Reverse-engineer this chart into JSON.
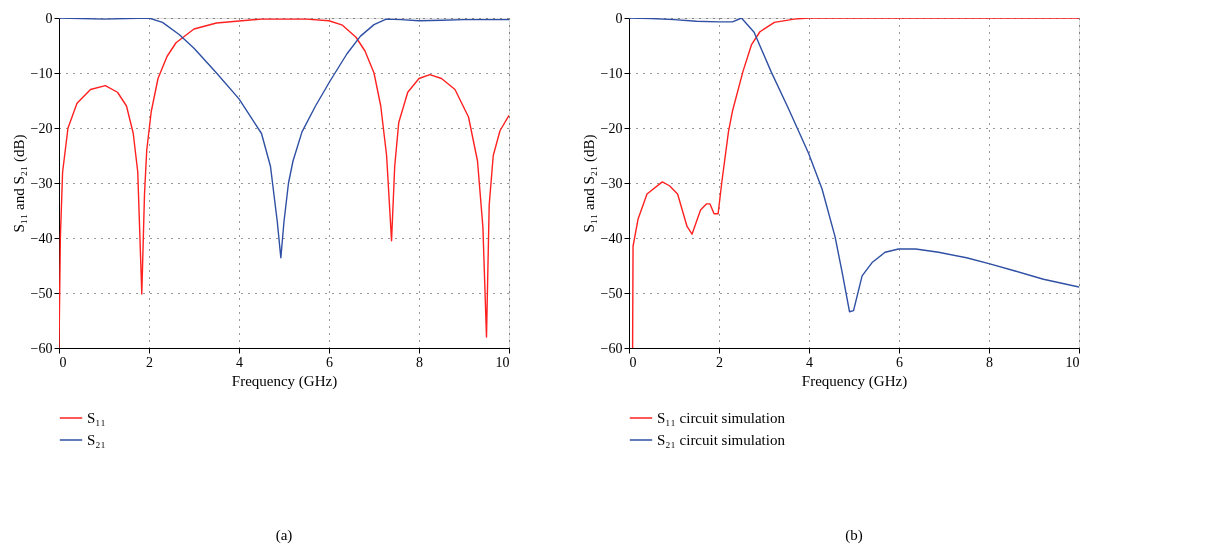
{
  "chart_data": [
    {
      "type": "line",
      "xlabel": "Frequency (GHz)",
      "ylabel": "S₁₁ and S₂₁ (dB)",
      "xlim": [
        0,
        10
      ],
      "ylim": [
        -60,
        0
      ],
      "xticks": [
        0,
        2,
        4,
        6,
        8,
        10
      ],
      "yticks": [
        -60,
        -50,
        -40,
        -30,
        -20,
        -10,
        0
      ],
      "grid": true,
      "legend": "bottom left",
      "marker": "none",
      "line_style": "solid",
      "annotations": [
        "(a)"
      ],
      "series": [
        {
          "name": "S₁₁",
          "color": "#ff2020",
          "x": [
            0,
            0.03,
            0.08,
            0.2,
            0.4,
            0.7,
            1.03,
            1.3,
            1.5,
            1.65,
            1.75,
            1.84,
            1.9,
            1.95,
            2.05,
            2.2,
            2.4,
            2.6,
            3.0,
            3.5,
            4.5,
            5.5,
            6.0,
            6.3,
            6.6,
            6.8,
            7.0,
            7.15,
            7.28,
            7.39,
            7.46,
            7.55,
            7.75,
            8.0,
            8.24,
            8.5,
            8.8,
            9.1,
            9.3,
            9.42,
            9.5,
            9.56,
            9.65,
            9.8,
            10
          ],
          "values": [
            -60,
            -40,
            -28,
            -20,
            -15.5,
            -13,
            -12.3,
            -13.5,
            -16,
            -21,
            -28,
            -50.2,
            -32,
            -24,
            -17,
            -11,
            -7,
            -4.5,
            -2,
            -0.9,
            -0.2,
            -0.2,
            -0.5,
            -1.3,
            -3.5,
            -6,
            -10,
            -16,
            -25,
            -40.5,
            -27,
            -19,
            -13.5,
            -11,
            -10.3,
            -11,
            -13,
            -18,
            -26,
            -38,
            -58,
            -34,
            -25,
            -20.5,
            -17.7
          ]
        },
        {
          "name": "S₂₁",
          "color": "#2e4fa3",
          "x": [
            0,
            0.5,
            1,
            1.5,
            2.0,
            2.3,
            2.67,
            3.0,
            3.5,
            4.0,
            4.5,
            4.7,
            4.85,
            4.93,
            5.0,
            5.1,
            5.2,
            5.4,
            5.7,
            6.02,
            6.4,
            6.7,
            7.0,
            7.27,
            7.6,
            8.0,
            8.5,
            9.0,
            9.5,
            10
          ],
          "values": [
            0,
            -0.1,
            -0.2,
            -0.1,
            0,
            -0.8,
            -3,
            -5.5,
            -10,
            -14.7,
            -21,
            -27,
            -37,
            -43.6,
            -37,
            -30,
            -26,
            -20.7,
            -16,
            -11.5,
            -6.5,
            -3.3,
            -1.2,
            -0.2,
            -0.3,
            -0.5,
            -0.4,
            -0.3,
            -0.3,
            -0.3
          ]
        }
      ]
    },
    {
      "type": "line",
      "xlabel": "Frequency (GHz)",
      "ylabel": "S₁₁ and S₂₁ (dB)",
      "xlim": [
        0,
        10
      ],
      "ylim": [
        -60,
        0
      ],
      "xticks": [
        0,
        2,
        4,
        6,
        8,
        10
      ],
      "yticks": [
        -60,
        -50,
        -40,
        -30,
        -20,
        -10,
        0
      ],
      "grid": true,
      "legend": "bottom left",
      "marker": "none",
      "line_style": "solid",
      "annotations": [
        "(b)"
      ],
      "series": [
        {
          "name": "S₁₁ circuit simulation",
          "color": "#ff2020",
          "x": [
            0.08,
            0.09,
            0.2,
            0.4,
            0.74,
            0.9,
            1.08,
            1.29,
            1.4,
            1.59,
            1.72,
            1.8,
            1.89,
            1.98,
            2.06,
            2.21,
            2.3,
            2.53,
            2.72,
            2.91,
            3.23,
            3.67,
            4.0,
            5,
            6,
            7,
            8,
            9,
            10
          ],
          "values": [
            -60,
            -41.5,
            -36.6,
            -32,
            -29.8,
            -30.5,
            -32,
            -37.9,
            -39.3,
            -34.9,
            -33.8,
            -33.8,
            -35.6,
            -35.6,
            -30,
            -20.7,
            -16.9,
            -9.8,
            -4.9,
            -2.5,
            -0.8,
            -0.2,
            0,
            0,
            0,
            0,
            0,
            0,
            0
          ]
        },
        {
          "name": "S₂₁ circuit simulation",
          "color": "#2e4fa3",
          "x": [
            0,
            0.5,
            1,
            1.5,
            2.0,
            2.3,
            2.5,
            2.78,
            3.16,
            3.54,
            3.99,
            4.29,
            4.58,
            4.74,
            4.9,
            4.99,
            5.18,
            5.41,
            5.69,
            5.99,
            6.37,
            6.88,
            7.5,
            8.02,
            8.58,
            9.21,
            10
          ],
          "values": [
            0,
            -0.1,
            -0.3,
            -0.6,
            -0.7,
            -0.7,
            0,
            -2.6,
            -9.8,
            -16.4,
            -24.6,
            -31.1,
            -39.8,
            -46.4,
            -53.4,
            -53.2,
            -46.9,
            -44.4,
            -42.6,
            -42,
            -42,
            -42.6,
            -43.6,
            -44.7,
            -46,
            -47.5,
            -48.9
          ]
        }
      ]
    }
  ]
}
